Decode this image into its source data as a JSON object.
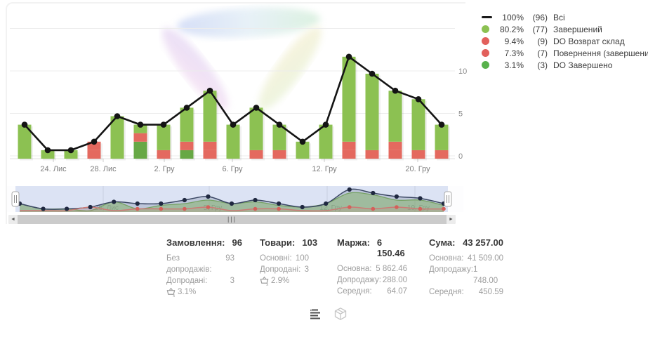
{
  "legend": {
    "items": [
      {
        "swatch": "line",
        "color": "#1a1a1a",
        "pct": "100%",
        "count": "(96)",
        "label": "Всі"
      },
      {
        "swatch": "dot",
        "color": "#8cc152",
        "pct": "80.2%",
        "count": "(77)",
        "label": "Завершений"
      },
      {
        "swatch": "dot",
        "color": "#e2605c",
        "pct": "9.4%",
        "count": "(9)",
        "label": "DO Возврат склад"
      },
      {
        "swatch": "dot",
        "color": "#e2605c",
        "pct": "7.3%",
        "count": "(7)",
        "label": "Повернення (завершений)"
      },
      {
        "swatch": "dot",
        "color": "#58b14c",
        "pct": "3.1%",
        "count": "(3)",
        "label": "DO Завершено"
      }
    ]
  },
  "chart_data": {
    "type": "bar",
    "stacked": true,
    "bar_count": 19,
    "ylim": [
      0,
      15
    ],
    "series": [
      {
        "name": "DO Завершено",
        "color": "#67a845",
        "values": [
          0,
          0,
          0,
          0,
          0,
          2,
          0,
          1,
          0,
          0,
          0,
          0,
          0,
          0,
          0,
          0,
          0,
          0,
          0
        ]
      },
      {
        "name": "Повернення (завершений)",
        "color": "#e4695f",
        "values": [
          0,
          0,
          0,
          1,
          0,
          0,
          1,
          0,
          1,
          0,
          0,
          0,
          0,
          0,
          1,
          1,
          1,
          0,
          1
        ]
      },
      {
        "name": "DO Возврат склад",
        "color": "#e4695f",
        "values": [
          0,
          0,
          0,
          1,
          0,
          1,
          0,
          1,
          1,
          0,
          1,
          1,
          0,
          0,
          1,
          0,
          1,
          1,
          0
        ]
      },
      {
        "name": "Завершений",
        "color": "#8cc152",
        "values": [
          4,
          1,
          1,
          0,
          5,
          1,
          3,
          4,
          6,
          4,
          5,
          3,
          2,
          4,
          10,
          9,
          6,
          6,
          3
        ]
      }
    ],
    "line_series": {
      "name": "Всі",
      "color": "#141414",
      "values": [
        4,
        1,
        1,
        2,
        5,
        4,
        4,
        6,
        8,
        4,
        6,
        4,
        2,
        4,
        12,
        10,
        8,
        7,
        4
      ]
    },
    "y_ticks": [
      {
        "value": 0,
        "label": "0"
      },
      {
        "value": 5,
        "label": "5"
      },
      {
        "value": 10,
        "label": "10"
      }
    ],
    "x_ticks": [
      {
        "label": "24. Лис",
        "x": 76
      },
      {
        "label": "28. Лис",
        "x": 147
      },
      {
        "label": "2. Гру",
        "x": 234
      },
      {
        "label": "6. Гру",
        "x": 331
      },
      {
        "label": "12. Гру",
        "x": 462
      },
      {
        "label": "20. Гру",
        "x": 595
      }
    ]
  },
  "navigator": {
    "x_ticks": [
      {
        "label": "28. Лис",
        "x": 137
      },
      {
        "label": "5. Гру",
        "x": 288
      },
      {
        "label": "12. Гру",
        "x": 456
      },
      {
        "label": "19. Гру",
        "x": 581
      }
    ]
  },
  "scrollbar": {
    "left_arrow": "◄",
    "right_arrow": "►",
    "grip": "|||"
  },
  "stats": {
    "columns": [
      {
        "title": "Замовлення:",
        "value": "96",
        "rows": [
          {
            "label": "Без допродажів:",
            "value": "93"
          },
          {
            "label": "Допродані:",
            "value": "3"
          }
        ],
        "upsell_pct": "3.1%"
      },
      {
        "title": "Товари:",
        "value": "103",
        "rows": [
          {
            "label": "Основні:",
            "value": "100"
          },
          {
            "label": "Допродані:",
            "value": "3"
          }
        ],
        "upsell_pct": "2.9%"
      },
      {
        "title": "Маржа:",
        "value": "6 150.46",
        "rows": [
          {
            "label": "Основна:",
            "value": "5 862.46"
          },
          {
            "label": "Допродажу:",
            "value": "288.00"
          },
          {
            "label": "Середня:",
            "value": "64.07"
          }
        ]
      },
      {
        "title": "Сума:",
        "value": "43 257.00",
        "rows": [
          {
            "label": "Основна:",
            "value": "41 509.00"
          },
          {
            "label": "Допродажу:",
            "value": "1 748.00"
          },
          {
            "label": "Середня:",
            "value": "450.59"
          }
        ]
      }
    ]
  }
}
